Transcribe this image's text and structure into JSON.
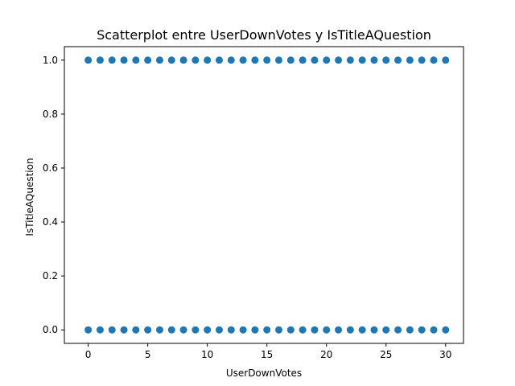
{
  "chart_data": {
    "type": "scatter",
    "title": "Scatterplot entre UserDownVotes y IsTitleAQuestion",
    "xlabel": "UserDownVotes",
    "ylabel": "IsTitleAQuestion",
    "xlim": [
      -2,
      31.5
    ],
    "ylim": [
      -0.05,
      1.05
    ],
    "xticks": [
      "0",
      "5",
      "10",
      "15",
      "20",
      "25",
      "30"
    ],
    "yticks": [
      "0.0",
      "0.2",
      "0.4",
      "0.6",
      "0.8",
      "1.0"
    ],
    "grid": false,
    "legend": "none",
    "marker_color": "#1f77b4",
    "series": [
      {
        "x": [
          0,
          1,
          2,
          3,
          4,
          5,
          6,
          7,
          8,
          9,
          10,
          11,
          12,
          13,
          14,
          15,
          16,
          17,
          18,
          19,
          20,
          21,
          22,
          23,
          24,
          25,
          26,
          27,
          28,
          29,
          30,
          0,
          1,
          2,
          3,
          4,
          5,
          6,
          7,
          8,
          9,
          10,
          11,
          12,
          13,
          14,
          15,
          16,
          17,
          18,
          19,
          20,
          21,
          22,
          23,
          24,
          25,
          26,
          27,
          28,
          29,
          30
        ],
        "y": [
          1,
          1,
          1,
          1,
          1,
          1,
          1,
          1,
          1,
          1,
          1,
          1,
          1,
          1,
          1,
          1,
          1,
          1,
          1,
          1,
          1,
          1,
          1,
          1,
          1,
          1,
          1,
          1,
          1,
          1,
          1,
          0,
          0,
          0,
          0,
          0,
          0,
          0,
          0,
          0,
          0,
          0,
          0,
          0,
          0,
          0,
          0,
          0,
          0,
          0,
          0,
          0,
          0,
          0,
          0,
          0,
          0,
          0,
          0,
          0,
          0,
          0
        ]
      }
    ]
  }
}
